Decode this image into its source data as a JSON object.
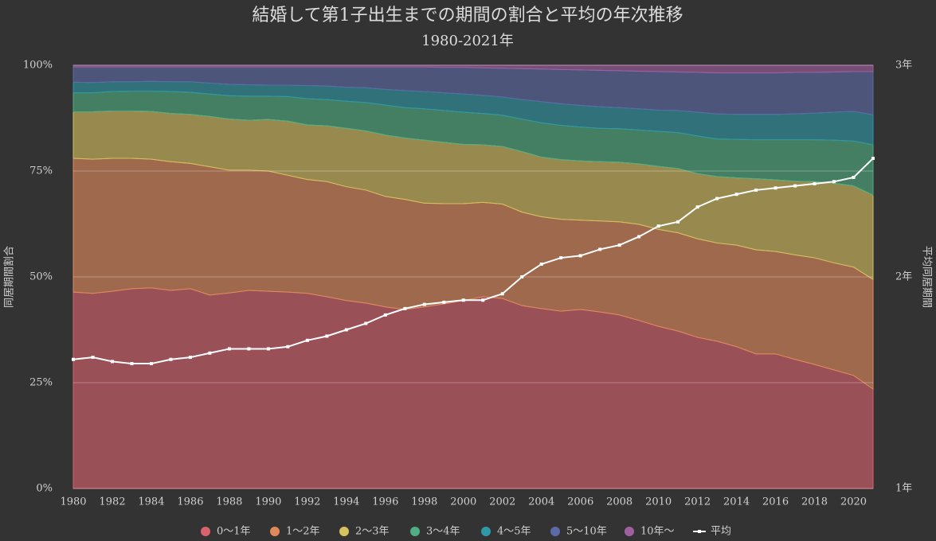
{
  "chart_data": {
    "type": "area",
    "stacked": true,
    "title": "結婚して第1子出生までの期間の割合と平均の年次推移",
    "subtitle": "1980-2021年",
    "y_label": "同居期間割合",
    "y2_label": "平均同居期間",
    "x": [
      1980,
      1981,
      1982,
      1983,
      1984,
      1985,
      1986,
      1987,
      1988,
      1989,
      1990,
      1991,
      1992,
      1993,
      1994,
      1995,
      1996,
      1997,
      1998,
      1999,
      2000,
      2001,
      2002,
      2003,
      2004,
      2005,
      2006,
      2007,
      2008,
      2009,
      2010,
      2011,
      2012,
      2013,
      2014,
      2015,
      2016,
      2017,
      2018,
      2019,
      2020,
      2021
    ],
    "xlim": [
      1980,
      2021
    ],
    "xticks": [
      1980,
      1982,
      1984,
      1986,
      1988,
      1990,
      1992,
      1994,
      1996,
      1998,
      2000,
      2002,
      2004,
      2006,
      2008,
      2010,
      2012,
      2014,
      2016,
      2018,
      2020
    ],
    "ylim": [
      0,
      100
    ],
    "yticks": [
      {
        "value": 0,
        "label": "0%"
      },
      {
        "value": 25,
        "label": "25%"
      },
      {
        "value": 50,
        "label": "50%"
      },
      {
        "value": 75,
        "label": "75%"
      },
      {
        "value": 100,
        "label": "100%"
      }
    ],
    "y2lim": [
      1,
      3
    ],
    "y2ticks": [
      {
        "value": 1,
        "label": "1年"
      },
      {
        "value": 2,
        "label": "2年"
      },
      {
        "value": 3,
        "label": "3年"
      }
    ],
    "grid": true,
    "legend": "bottom",
    "series": [
      {
        "name": "0～1年",
        "color": "#d9636d",
        "values": [
          46.4,
          46.1,
          46.6,
          47.2,
          47.4,
          46.8,
          47.2,
          45.7,
          46.2,
          46.8,
          46.6,
          46.4,
          46.1,
          45.3,
          44.4,
          43.8,
          42.9,
          42.3,
          42.9,
          43.6,
          44.4,
          45.3,
          44.9,
          43.2,
          42.5,
          41.9,
          42.3,
          41.7,
          41.0,
          39.7,
          38.3,
          37.2,
          35.7,
          34.8,
          33.5,
          31.8,
          31.8,
          30.5,
          29.3,
          28.0,
          26.7,
          23.5
        ]
      },
      {
        "name": "1～2年",
        "color": "#e08a5c",
        "values": [
          31.6,
          31.7,
          31.4,
          30.8,
          30.4,
          30.4,
          29.6,
          30.3,
          29.0,
          28.4,
          28.4,
          27.6,
          26.9,
          27.2,
          26.9,
          26.7,
          26.1,
          26.0,
          24.5,
          23.7,
          22.9,
          22.3,
          22.3,
          22.1,
          21.7,
          21.7,
          21.1,
          21.5,
          22.0,
          22.7,
          22.9,
          23.2,
          23.3,
          23.2,
          24.0,
          24.6,
          24.2,
          24.7,
          25.2,
          25.3,
          25.6,
          25.9
        ]
      },
      {
        "name": "2～3年",
        "color": "#d6c060",
        "values": [
          11.0,
          11.2,
          11.2,
          11.2,
          11.3,
          11.4,
          11.6,
          11.9,
          12.1,
          11.8,
          12.2,
          12.8,
          12.9,
          13.2,
          13.8,
          14.0,
          14.5,
          14.5,
          14.9,
          14.5,
          14.0,
          13.6,
          13.6,
          14.3,
          14.1,
          14.1,
          14.0,
          14.0,
          14.1,
          14.3,
          14.9,
          15.2,
          15.4,
          15.7,
          15.9,
          16.8,
          16.9,
          17.4,
          18.0,
          18.8,
          19.2,
          19.9
        ]
      },
      {
        "name": "3～4年",
        "color": "#4fae83",
        "values": [
          4.5,
          4.5,
          4.6,
          4.7,
          4.8,
          5.2,
          5.2,
          5.3,
          5.5,
          5.7,
          5.5,
          5.8,
          6.2,
          6.2,
          6.4,
          6.7,
          7.1,
          7.2,
          7.4,
          7.5,
          7.6,
          7.4,
          7.4,
          7.7,
          8.1,
          8.1,
          8.0,
          7.9,
          7.9,
          8.0,
          8.3,
          8.5,
          8.9,
          8.9,
          9.1,
          9.2,
          9.5,
          9.8,
          9.9,
          10.2,
          10.6,
          11.9
        ]
      },
      {
        "name": "4～5年",
        "color": "#2f98a6",
        "values": [
          2.5,
          2.4,
          2.3,
          2.2,
          2.3,
          2.3,
          2.5,
          2.6,
          2.7,
          2.7,
          2.6,
          2.7,
          3.1,
          3.2,
          3.3,
          3.5,
          3.7,
          4.0,
          4.1,
          4.2,
          4.3,
          4.3,
          4.3,
          4.6,
          5.0,
          5.1,
          5.1,
          5.1,
          5.0,
          5.0,
          5.0,
          5.2,
          5.6,
          5.9,
          5.9,
          6.0,
          6.0,
          6.1,
          6.3,
          6.6,
          7.0,
          7.1
        ]
      },
      {
        "name": "5～10年",
        "color": "#5d6aa8",
        "values": [
          3.6,
          3.7,
          3.5,
          3.5,
          3.4,
          3.5,
          3.5,
          3.8,
          4.1,
          4.2,
          4.3,
          4.3,
          4.4,
          4.5,
          4.8,
          4.9,
          5.3,
          5.6,
          5.8,
          6.0,
          6.3,
          6.5,
          6.8,
          7.3,
          7.7,
          8.1,
          8.4,
          8.6,
          8.7,
          8.9,
          9.1,
          9.1,
          9.4,
          9.7,
          9.8,
          9.8,
          9.8,
          9.8,
          9.6,
          9.5,
          9.4,
          10.2
        ]
      },
      {
        "name": "10年～",
        "color": "#a060a0",
        "values": [
          0.4,
          0.4,
          0.4,
          0.4,
          0.4,
          0.4,
          0.4,
          0.4,
          0.4,
          0.4,
          0.4,
          0.4,
          0.4,
          0.4,
          0.4,
          0.4,
          0.4,
          0.4,
          0.4,
          0.5,
          0.5,
          0.6,
          0.7,
          0.8,
          0.9,
          1.0,
          1.1,
          1.2,
          1.3,
          1.4,
          1.5,
          1.6,
          1.7,
          1.8,
          1.8,
          1.8,
          1.8,
          1.7,
          1.7,
          1.6,
          1.5,
          1.5
        ]
      },
      {
        "name": "平均",
        "type": "line",
        "axis": "y2",
        "color": "#ffffff",
        "values": [
          1.61,
          1.62,
          1.6,
          1.59,
          1.59,
          1.61,
          1.62,
          1.64,
          1.66,
          1.66,
          1.66,
          1.67,
          1.7,
          1.72,
          1.75,
          1.78,
          1.82,
          1.85,
          1.87,
          1.88,
          1.89,
          1.89,
          1.92,
          2.0,
          2.06,
          2.09,
          2.1,
          2.13,
          2.15,
          2.19,
          2.24,
          2.26,
          2.33,
          2.37,
          2.39,
          2.41,
          2.42,
          2.43,
          2.44,
          2.45,
          2.47,
          2.56
        ]
      }
    ]
  }
}
